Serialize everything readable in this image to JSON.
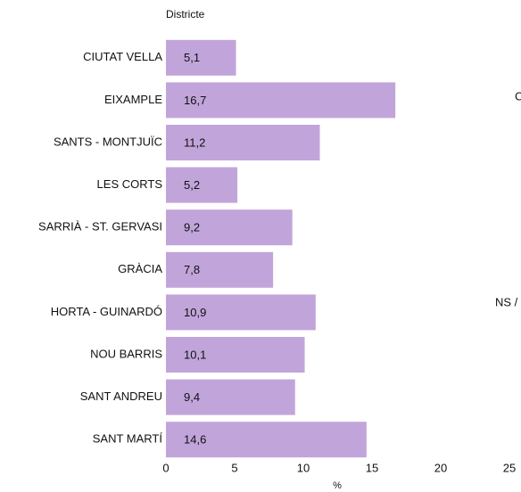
{
  "chart_data": {
    "type": "barh",
    "axis_title": "Districte",
    "xlabel": "%",
    "categories": [
      "CIUTAT VELLA",
      "EIXAMPLE",
      "SANTS - MONTJUÏC",
      "LES CORTS",
      "SARRIÀ - ST. GERVASI",
      "GRÀCIA",
      "HORTA - GUINARDÓ",
      "NOU BARRIS",
      "SANT ANDREU",
      "SANT MARTÍ"
    ],
    "values": [
      5.1,
      16.7,
      11.2,
      5.2,
      9.2,
      7.8,
      10.9,
      10.1,
      9.4,
      14.6
    ],
    "value_labels": [
      "5,1",
      "16,7",
      "11,2",
      "5,2",
      "9,2",
      "7,8",
      "10,9",
      "10,1",
      "9,4",
      "14,6"
    ],
    "color": "#c1a5da",
    "xlim": [
      0,
      25
    ],
    "xticks": [
      0,
      5,
      10,
      15,
      20,
      25
    ],
    "annotations": [
      "C",
      "NS / NC"
    ]
  }
}
